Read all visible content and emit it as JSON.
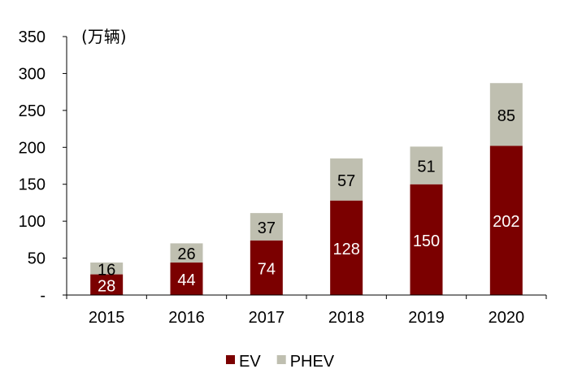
{
  "chart_data": {
    "type": "bar",
    "stacked": true,
    "unit_label": "(万辆)",
    "categories": [
      "2015",
      "2016",
      "2017",
      "2018",
      "2019",
      "2020"
    ],
    "series": [
      {
        "name": "EV",
        "values": [
          28,
          44,
          74,
          128,
          150,
          202
        ],
        "color": "#7B0000",
        "label_color": "#ffffff"
      },
      {
        "name": "PHEV",
        "values": [
          16,
          26,
          37,
          57,
          51,
          85
        ],
        "color": "#BFBFB0",
        "label_color": "#000000"
      }
    ],
    "ylim": [
      0,
      350
    ],
    "y_ticks": [
      {
        "value": 0,
        "label": "-"
      },
      {
        "value": 50,
        "label": "50"
      },
      {
        "value": 100,
        "label": "100"
      },
      {
        "value": 150,
        "label": "150"
      },
      {
        "value": 200,
        "label": "200"
      },
      {
        "value": 250,
        "label": "250"
      },
      {
        "value": 300,
        "label": "300"
      },
      {
        "value": 350,
        "label": "350"
      }
    ],
    "grid": false,
    "legend_position": "bottom-center"
  }
}
